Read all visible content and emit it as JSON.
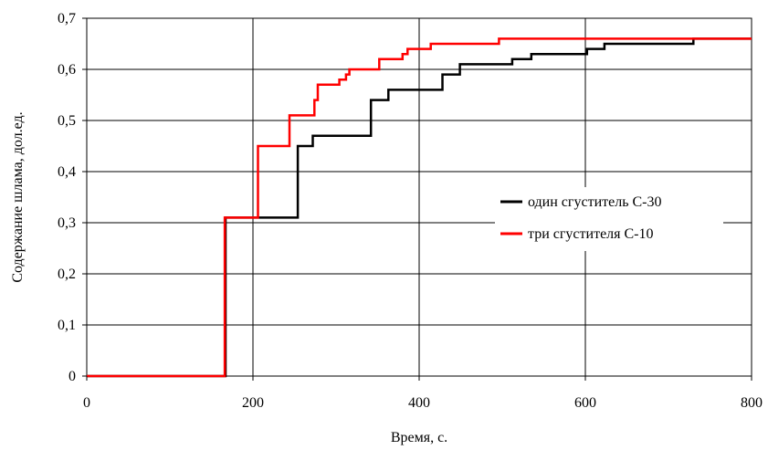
{
  "chart_data": {
    "type": "line",
    "step": true,
    "xlabel": "Время, с.",
    "ylabel": "Содержание шлама, дол.ед.",
    "xlim": [
      0,
      800
    ],
    "ylim": [
      0,
      0.7
    ],
    "x_ticks": [
      0,
      200,
      400,
      600,
      800
    ],
    "y_ticks": [
      0,
      0.1,
      0.2,
      0.3,
      0.4,
      0.5,
      0.6,
      0.7
    ],
    "x_tick_labels": [
      "0",
      "200",
      "400",
      "600",
      "800"
    ],
    "y_tick_labels": [
      "0",
      "0,1",
      "0,2",
      "0,3",
      "0,4",
      "0,5",
      "0,6",
      "0,7"
    ],
    "grid": true,
    "legend_position": "right",
    "series": [
      {
        "name": "один сгуститель С-30",
        "color": "#000000",
        "points": [
          [
            0,
            0
          ],
          [
            167,
            0
          ],
          [
            167,
            0.31
          ],
          [
            254,
            0.31
          ],
          [
            254,
            0.45
          ],
          [
            272,
            0.45
          ],
          [
            272,
            0.47
          ],
          [
            342,
            0.47
          ],
          [
            342,
            0.54
          ],
          [
            363,
            0.54
          ],
          [
            363,
            0.56
          ],
          [
            428,
            0.56
          ],
          [
            428,
            0.59
          ],
          [
            449,
            0.59
          ],
          [
            449,
            0.61
          ],
          [
            512,
            0.61
          ],
          [
            512,
            0.62
          ],
          [
            535,
            0.62
          ],
          [
            535,
            0.63
          ],
          [
            602,
            0.63
          ],
          [
            602,
            0.64
          ],
          [
            623,
            0.64
          ],
          [
            623,
            0.65
          ],
          [
            730,
            0.65
          ],
          [
            730,
            0.66
          ],
          [
            800,
            0.66
          ]
        ]
      },
      {
        "name": "три сгустителя С-10",
        "color": "#ff0000",
        "points": [
          [
            0,
            0
          ],
          [
            166,
            0
          ],
          [
            166,
            0.31
          ],
          [
            206,
            0.31
          ],
          [
            206,
            0.45
          ],
          [
            244,
            0.45
          ],
          [
            244,
            0.51
          ],
          [
            274,
            0.51
          ],
          [
            274,
            0.54
          ],
          [
            278,
            0.54
          ],
          [
            278,
            0.57
          ],
          [
            304,
            0.57
          ],
          [
            304,
            0.58
          ],
          [
            312,
            0.58
          ],
          [
            312,
            0.59
          ],
          [
            316,
            0.59
          ],
          [
            316,
            0.6
          ],
          [
            352,
            0.6
          ],
          [
            352,
            0.62
          ],
          [
            380,
            0.62
          ],
          [
            380,
            0.63
          ],
          [
            386,
            0.63
          ],
          [
            386,
            0.64
          ],
          [
            414,
            0.64
          ],
          [
            414,
            0.65
          ],
          [
            496,
            0.65
          ],
          [
            496,
            0.66
          ],
          [
            800,
            0.66
          ]
        ]
      }
    ]
  }
}
